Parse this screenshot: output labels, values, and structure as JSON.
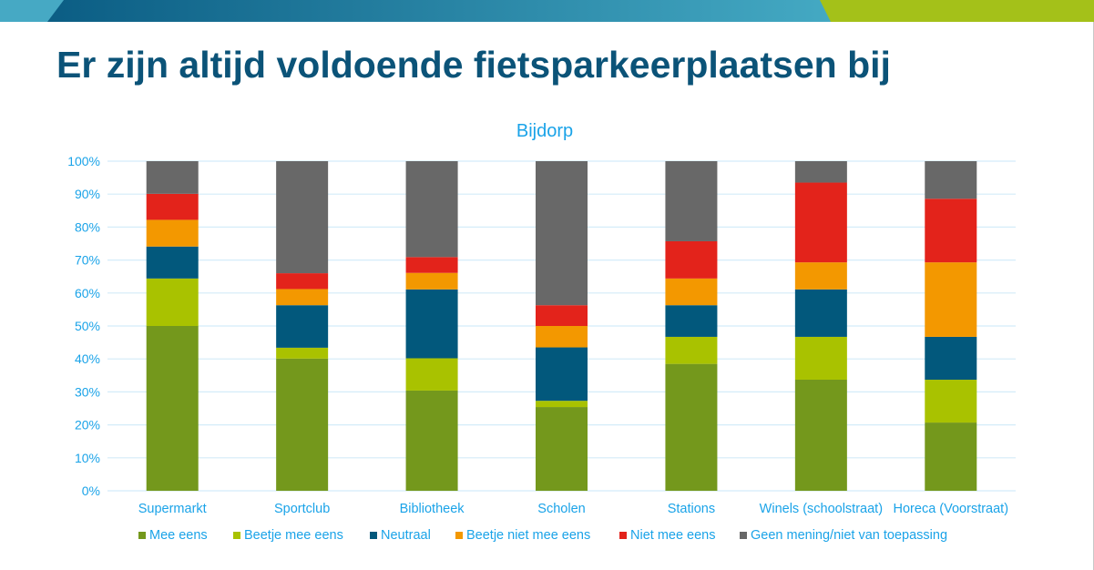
{
  "slide": {
    "title": "Er zijn altijd voldoende fietsparkeerplaatsen bij",
    "banner_colors": {
      "left": "#46a9c4",
      "gradient_start": "#0b5d84",
      "gradient_end": "#44a9c3",
      "right": "#a4c119"
    }
  },
  "chart_data": {
    "type": "bar",
    "stacked": true,
    "title": "Bijdorp",
    "xlabel": "",
    "ylabel": "",
    "ylim": [
      0,
      100
    ],
    "y_ticks": [
      "0%",
      "10%",
      "20%",
      "30%",
      "40%",
      "50%",
      "60%",
      "70%",
      "80%",
      "90%",
      "100%"
    ],
    "grid": true,
    "legend_position": "bottom",
    "categories": [
      "Supermarkt",
      "Sportclub",
      "Bibliotheek",
      "Scholen",
      "Stations",
      "Winels (schoolstraat)",
      "Horeca (Voorstraat)"
    ],
    "series": [
      {
        "name": "Mee eens",
        "color": "#74981c",
        "values": [
          50.0,
          40.1,
          30.4,
          25.4,
          38.5,
          33.7,
          20.7
        ]
      },
      {
        "name": "Beetje mee eens",
        "color": "#a9c200",
        "values": [
          14.4,
          3.3,
          9.8,
          1.9,
          8.2,
          13.0,
          13.0
        ]
      },
      {
        "name": "Neutraal",
        "color": "#02587c",
        "values": [
          9.7,
          12.9,
          20.9,
          16.2,
          9.6,
          14.4,
          13.0
        ]
      },
      {
        "name": "Beetje niet mee eens",
        "color": "#f39800",
        "values": [
          8.1,
          4.9,
          5.0,
          6.5,
          8.1,
          8.2,
          22.6
        ]
      },
      {
        "name": "Niet mee eens",
        "color": "#e3231b",
        "values": [
          7.9,
          4.8,
          4.8,
          6.3,
          11.3,
          24.2,
          19.3
        ]
      },
      {
        "name": "Geen mening/niet van toepassing",
        "color": "#686868",
        "values": [
          9.9,
          34.0,
          29.1,
          43.7,
          24.3,
          6.5,
          11.4
        ]
      }
    ],
    "text_color": "#1aa3e8",
    "grid_color": "#d4ecf9"
  }
}
